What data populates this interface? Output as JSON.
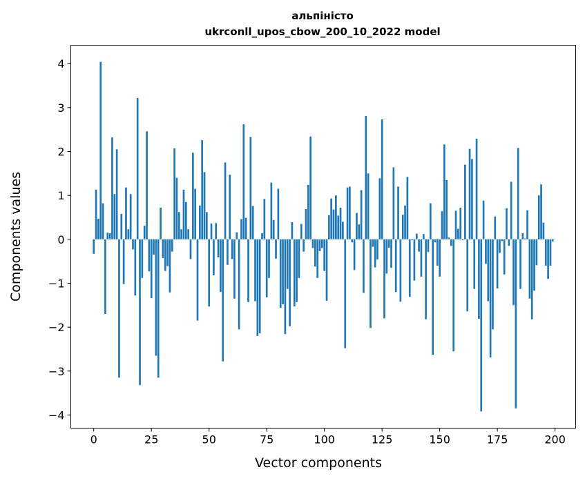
{
  "chart_data": {
    "type": "bar",
    "title": "альпіністо",
    "subtitle": "ukrconll_upos_cbow_200_10_2022 model",
    "xlabel": "Vector components",
    "ylabel": "Components values",
    "xlim": [
      -9.95,
      208.95
    ],
    "ylim": [
      -4.3,
      4.42
    ],
    "xticks": [
      0,
      25,
      50,
      75,
      100,
      125,
      150,
      175,
      200
    ],
    "xtick_labels": [
      "0",
      "25",
      "50",
      "75",
      "100",
      "125",
      "150",
      "175",
      "200"
    ],
    "yticks": [
      4,
      3,
      2,
      1,
      0,
      -1,
      -2,
      -3,
      -4
    ],
    "ytick_labels": [
      "4",
      "3",
      "2",
      "1",
      "0",
      "−1",
      "−2",
      "−3",
      "−4"
    ],
    "grid": false,
    "bar_color": "#1f77b4",
    "values": [
      -0.33,
      1.13,
      0.47,
      4.04,
      0.82,
      -1.7,
      0.15,
      0.14,
      2.32,
      1.03,
      2.05,
      -3.15,
      0.58,
      -1.02,
      1.18,
      0.23,
      1.03,
      -0.23,
      -1.28,
      3.22,
      -3.32,
      -0.88,
      0.31,
      2.46,
      -0.73,
      -1.34,
      -0.35,
      -2.65,
      -3.15,
      0.72,
      -0.43,
      -0.72,
      -0.61,
      -1.21,
      -0.28,
      2.07,
      1.4,
      0.62,
      0.23,
      1.13,
      0.85,
      0.23,
      -0.45,
      1.97,
      1.15,
      -1.85,
      0.77,
      2.26,
      1.53,
      0.62,
      -1.53,
      0.36,
      -0.82,
      0.37,
      -0.41,
      -1.2,
      -2.78,
      1.75,
      -0.58,
      1.47,
      -0.45,
      -1.35,
      0.16,
      -2.05,
      0.46,
      2.62,
      0.49,
      -1.43,
      2.33,
      0.76,
      -1.41,
      -2.2,
      -2.14,
      0.14,
      0.92,
      -1.32,
      -0.88,
      1.29,
      0.44,
      -0.44,
      1.15,
      -1.56,
      -1.48,
      -2.16,
      -1.13,
      -1.98,
      0.39,
      -1.53,
      -1.43,
      -0.88,
      0.35,
      -0.28,
      0.69,
      1.24,
      2.34,
      -0.2,
      -0.62,
      -0.88,
      -0.27,
      -0.2,
      -0.72,
      -1.4,
      0.55,
      0.93,
      0.68,
      1.0,
      0.54,
      0.72,
      0.4,
      -2.48,
      1.18,
      1.2,
      -0.07,
      -0.7,
      0.6,
      0.34,
      1.12,
      -1.22,
      2.81,
      1.5,
      -2.02,
      -0.17,
      -0.64,
      -0.46,
      1.39,
      2.73,
      -1.8,
      -0.78,
      -0.19,
      -0.65,
      1.64,
      -1.2,
      1.2,
      -1.42,
      0.56,
      0.77,
      1.42,
      -1.31,
      -0.02,
      -0.94,
      0.13,
      -0.28,
      -0.85,
      0.12,
      -1.82,
      -0.29,
      0.82,
      -2.63,
      -0.07,
      -0.6,
      -0.85,
      0.64,
      2.16,
      1.35,
      0.04,
      -0.15,
      -2.55,
      0.65,
      0.24,
      0.72,
      -0.02,
      1.7,
      -1.64,
      2.06,
      1.83,
      -1.13,
      2.29,
      -1.81,
      -3.92,
      0.88,
      -0.56,
      -1.41,
      -2.69,
      -2.05,
      0.52,
      -1.12,
      -0.31,
      -0.04,
      -0.8,
      0.71,
      -0.15,
      1.31,
      -1.5,
      -3.85,
      2.08,
      -1.13,
      0.14,
      0.02,
      0.66,
      -1.35,
      -1.82,
      -1.17,
      -0.59,
      1.0,
      1.25,
      0.38,
      -0.6,
      -0.9,
      -0.6,
      -0.05
    ]
  }
}
